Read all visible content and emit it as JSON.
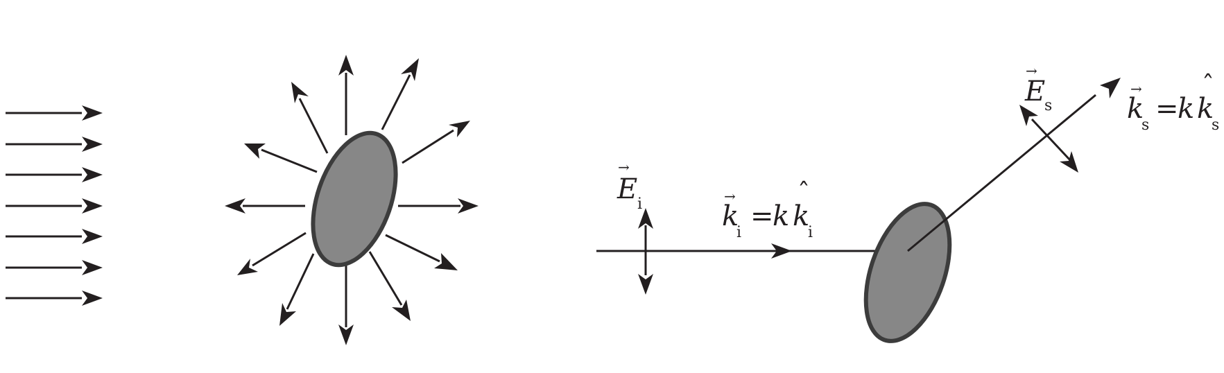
{
  "colors": {
    "stroke": "#231f20",
    "particle_fill": "#878787",
    "particle_outline": "#3c3c3c",
    "background": "#ffffff"
  },
  "labels": {
    "incident_field": {
      "symbol": "E",
      "subscript": "i"
    },
    "incident_wavevector": {
      "lhs": "k",
      "lhs_sub": "i",
      "eq": "=",
      "coef": "k",
      "rhs": "k",
      "rhs_sub": "i"
    },
    "scattered_field": {
      "symbol": "E",
      "subscript": "s"
    },
    "scattered_wavevector": {
      "lhs": "k",
      "lhs_sub": "s",
      "eq": "=",
      "coef": "k",
      "rhs": "k",
      "rhs_sub": "s"
    }
  },
  "icons": {
    "vector_arrow": "→",
    "unit_hat": "ˆ"
  }
}
